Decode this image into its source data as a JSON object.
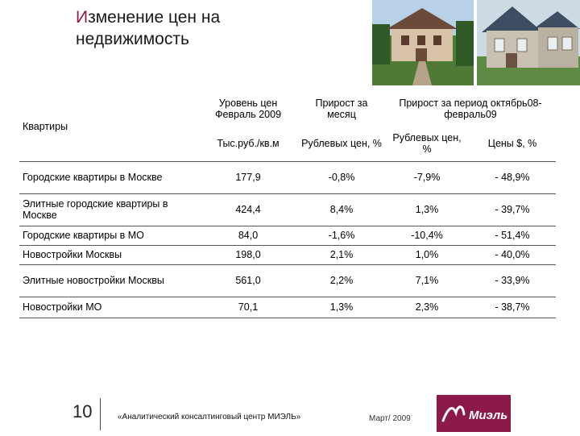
{
  "title": {
    "first_letter": "И",
    "line1_rest": "зменение цен на",
    "line2": "недвижимость"
  },
  "table": {
    "corner_label": "Квартиры",
    "headers": {
      "level": "Уровень цен Февраль 2009",
      "monthly": "Прирост за месяц",
      "period": "Прирост за период октябрь08-февраль09"
    },
    "subheaders": {
      "level": "Тыс.руб./кв.м",
      "monthly": "Рублевых цен, %",
      "period_rub": "Рублевых цен, %",
      "period_usd": "Цены $, %"
    },
    "rows": [
      {
        "name": "Городские квартиры в Москве",
        "level": "177,9",
        "monthly": "-0,8%",
        "period_rub": "-7,9%",
        "period_usd": "- 48,9%"
      },
      {
        "name": "Элитные городские квартиры в Москве",
        "level": "424,4",
        "monthly": "8,4%",
        "period_rub": "1,3%",
        "period_usd": "- 39,7%"
      },
      {
        "name": "Городские квартиры в МО",
        "level": "84,0",
        "monthly": "-1,6%",
        "period_rub": "-10,4%",
        "period_usd": "- 51,4%"
      },
      {
        "name": "Новостройки Москвы",
        "level": "198,0",
        "monthly": "2,1%",
        "period_rub": "1,0%",
        "period_usd": "- 40,0%"
      },
      {
        "name": "Элитные новостройки Москвы",
        "level": "561,0",
        "monthly": "2,2%",
        "period_rub": "7,1%",
        "period_usd": "- 33,9%"
      },
      {
        "name": "Новостройки МО",
        "level": "70,1",
        "monthly": "1,3%",
        "period_rub": "2,3%",
        "period_usd": "- 38,7%"
      }
    ]
  },
  "footer": {
    "page_number": "10",
    "source": "«Аналитический консалтинговый центр МИЭЛЬ»",
    "date": "Март/ 2009"
  },
  "logo": {
    "text": "Миэль",
    "color": "#8b1a4a"
  }
}
